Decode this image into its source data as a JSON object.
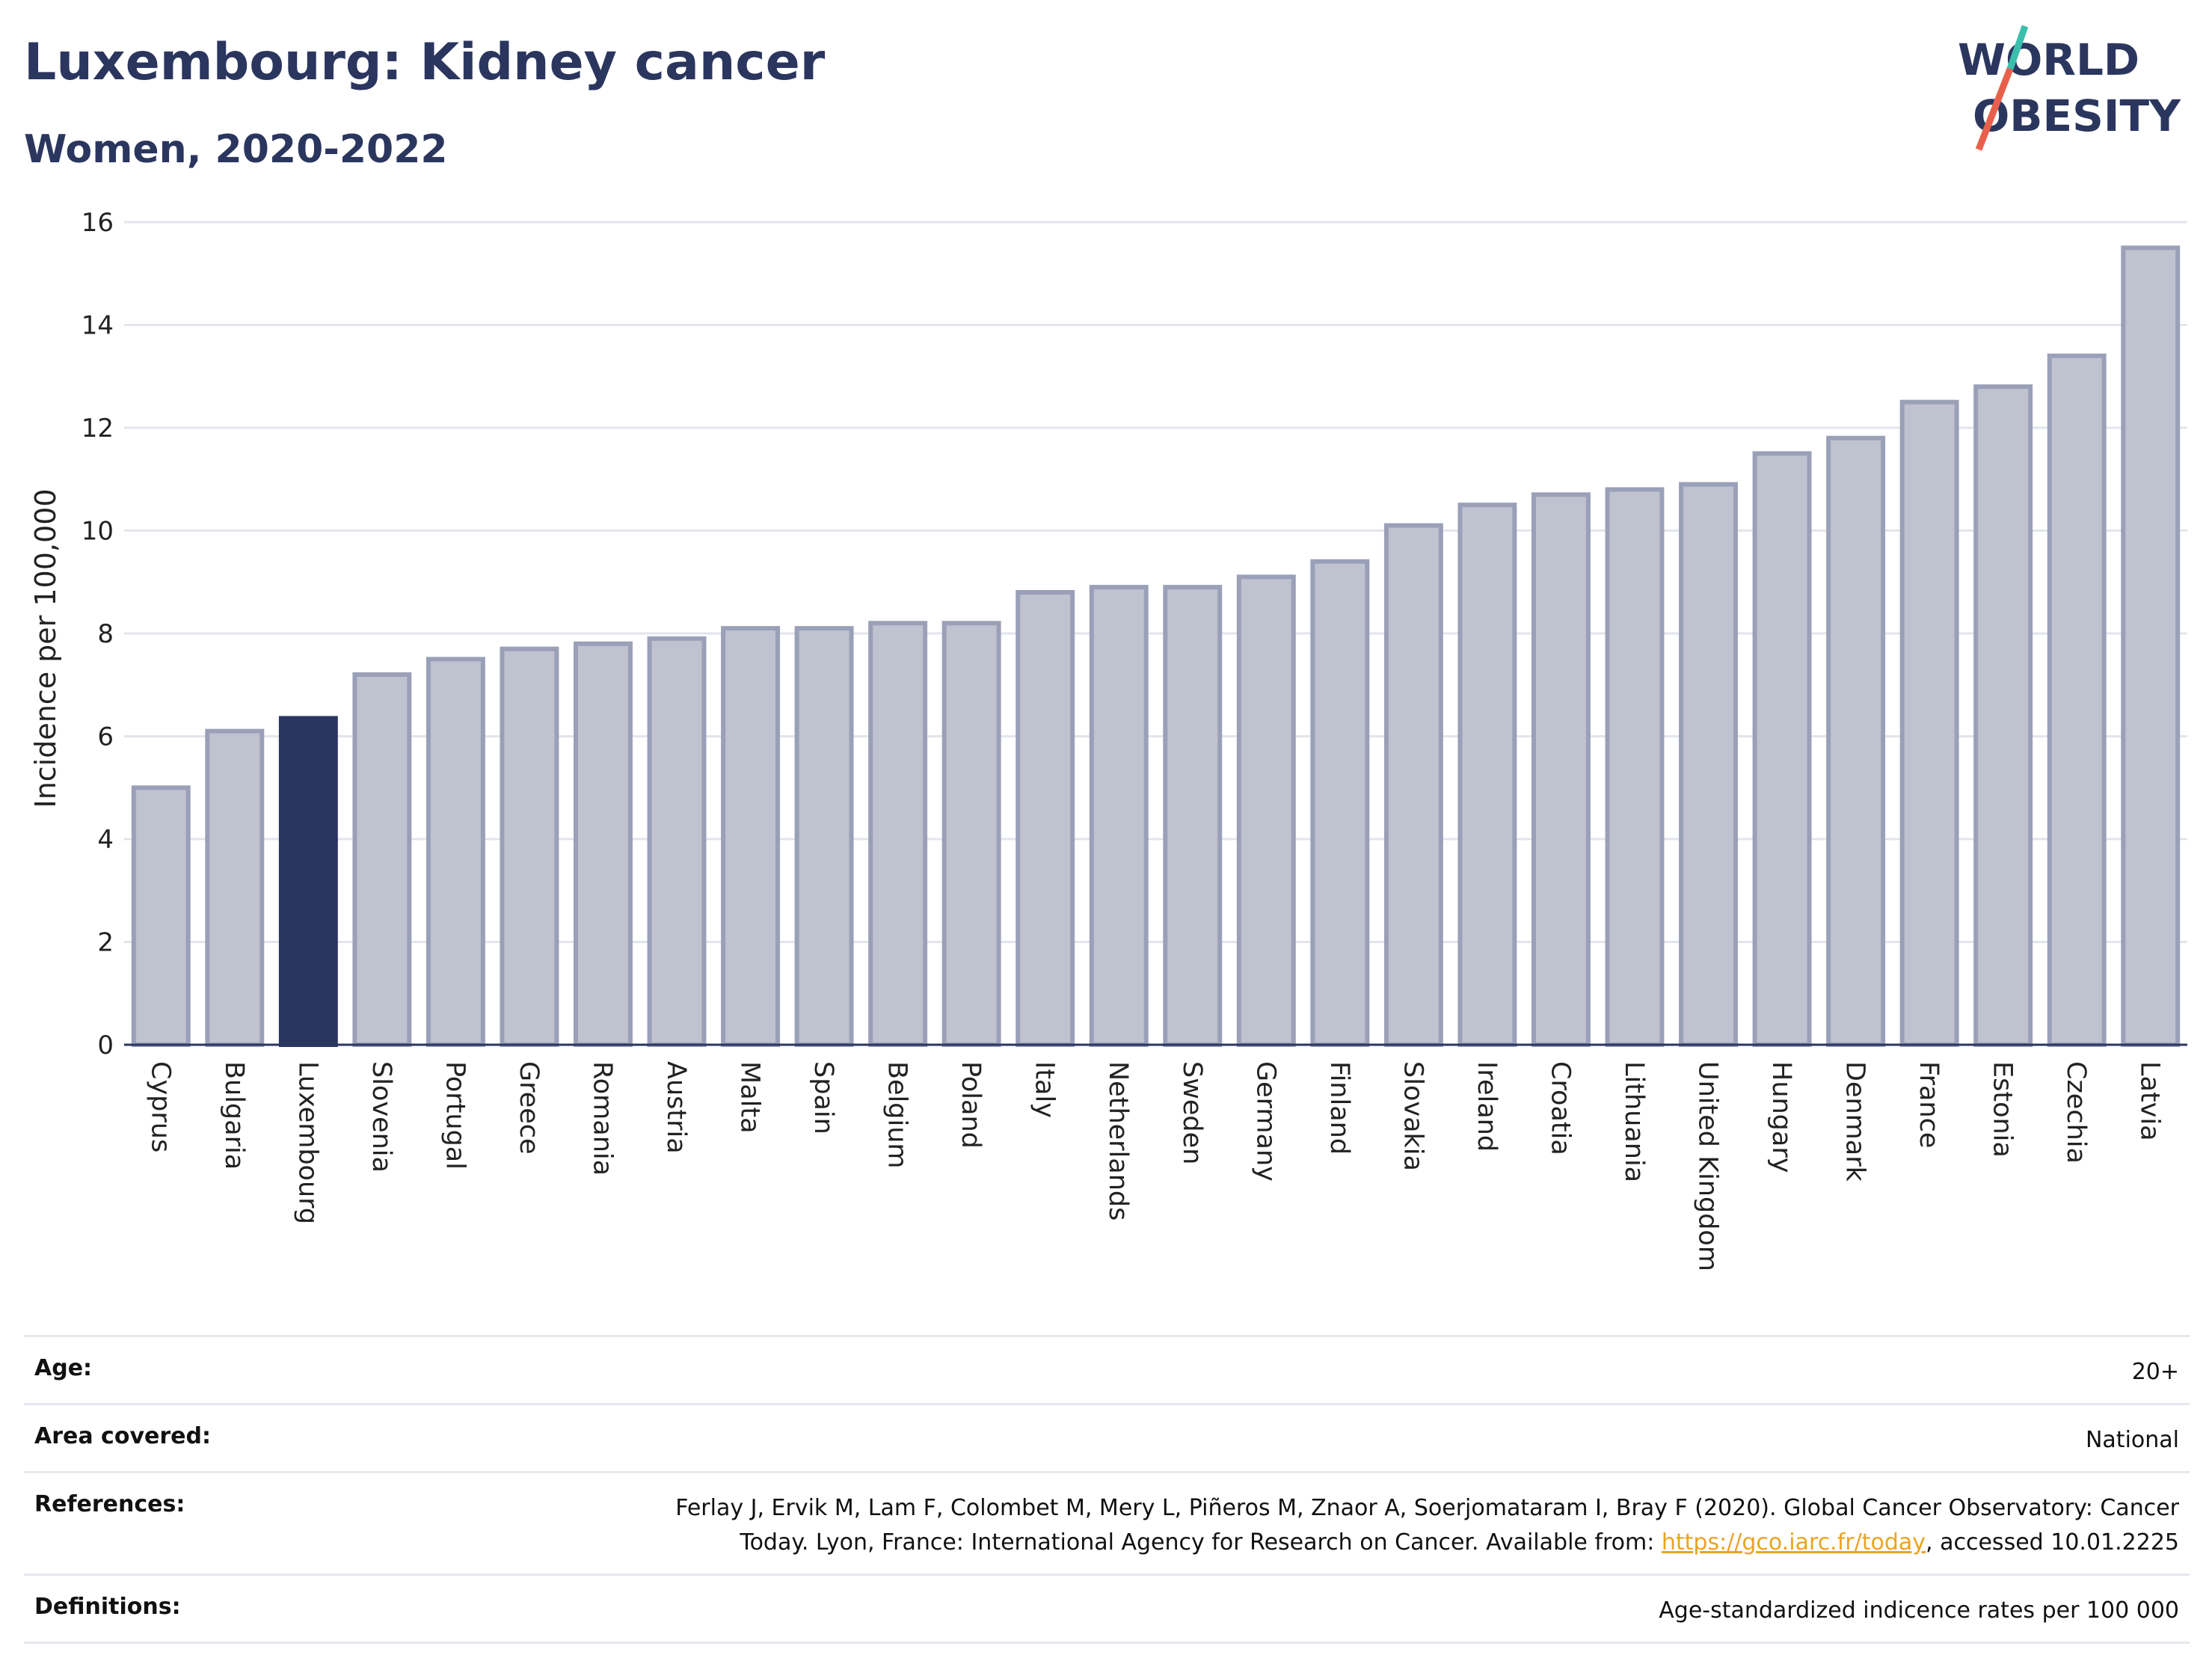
{
  "header": {
    "title": "Luxembourg: Kidney cancer",
    "subtitle": "Women, 2020-2022"
  },
  "logo": {
    "line1": "WORLD",
    "line2": "OBESITY",
    "accent_teal": "#3bbfad",
    "accent_red": "#e8604c"
  },
  "chart_data": {
    "type": "bar",
    "categories": [
      "Cyprus",
      "Bulgaria",
      "Luxembourg",
      "Slovenia",
      "Portugal",
      "Greece",
      "Romania",
      "Austria",
      "Malta",
      "Spain",
      "Belgium",
      "Poland",
      "Italy",
      "Netherlands",
      "Sweden",
      "Germany",
      "Finland",
      "Slovakia",
      "Ireland",
      "Croatia",
      "Lithuania",
      "United Kingdom",
      "Hungary",
      "Denmark",
      "France",
      "Estonia",
      "Czechia",
      "Latvia"
    ],
    "values": [
      5.0,
      6.1,
      6.35,
      7.2,
      7.5,
      7.7,
      7.8,
      7.9,
      8.1,
      8.1,
      8.2,
      8.2,
      8.8,
      8.9,
      8.9,
      9.1,
      9.4,
      10.1,
      10.5,
      10.7,
      10.8,
      10.9,
      11.5,
      11.8,
      12.5,
      12.8,
      13.4,
      15.5
    ],
    "highlight": "Luxembourg",
    "ylabel": "Incidence per 100,000",
    "xlabel": "",
    "ylim": [
      0,
      16
    ],
    "yticks": [
      0,
      2,
      4,
      6,
      8,
      10,
      12,
      14,
      16
    ],
    "grid": true,
    "colors": {
      "bar": "#bfc2cf",
      "bar_edge": "#9aa0b8",
      "highlight": "#2b365f"
    }
  },
  "meta": {
    "age_label": "Age:",
    "age_value": "20+",
    "area_label": "Area covered:",
    "area_value": "National",
    "references_label": "References:",
    "references_text_1": "Ferlay J, Ervik M, Lam F, Colombet M, Mery L, Piñeros M, Znaor A, Soerjomataram I, Bray F (2020). Global Cancer Observatory: Cancer",
    "references_text_2": "Today. Lyon, France: International Agency for Research on Cancer. Available from: ",
    "references_link": "https://gco.iarc.fr/today",
    "references_text_3": ", accessed 10.01.2225",
    "definitions_label": "Definitions:",
    "definitions_value": "Age-standardized indicence rates per 100 000"
  }
}
